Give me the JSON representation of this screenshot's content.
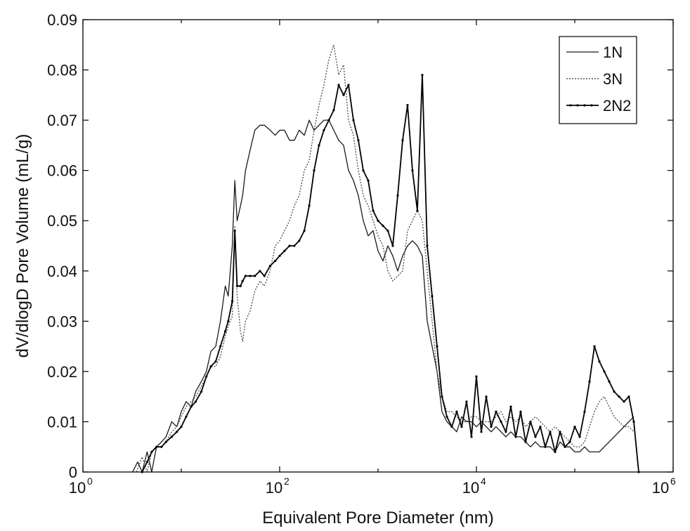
{
  "chart_data": {
    "type": "line",
    "title": "",
    "xlabel": "Equivalent Pore Diameter (nm)",
    "ylabel": "dV/dlogD Pore Volume (mL/g)",
    "xscale": "log",
    "xlim": [
      1,
      1000000
    ],
    "ylim": [
      0,
      0.09
    ],
    "xticks": [
      {
        "base": "10",
        "exp": "0"
      },
      {
        "base": "10",
        "exp": "2"
      },
      {
        "base": "10",
        "exp": "4"
      },
      {
        "base": "10",
        "exp": "6"
      }
    ],
    "yticks": [
      "0",
      "0.01",
      "0.02",
      "0.03",
      "0.04",
      "0.05",
      "0.06",
      "0.07",
      "0.08",
      "0.09"
    ],
    "grid": false,
    "legend_position": "top-right",
    "series": [
      {
        "name": "1N",
        "style": "solid",
        "color": "#1a1a1a",
        "x": [
          3.2,
          3.6,
          4,
          4.5,
          5,
          5.6,
          6.3,
          7,
          8,
          9,
          10,
          11.2,
          12.6,
          14,
          16,
          18,
          20,
          22.4,
          25,
          28,
          30,
          33,
          35,
          37,
          40,
          42,
          45,
          50,
          56,
          63,
          70,
          80,
          90,
          100,
          112,
          126,
          141,
          158,
          178,
          200,
          224,
          251,
          282,
          316,
          355,
          398,
          447,
          501,
          562,
          631,
          708,
          794,
          891,
          1000,
          1122,
          1259,
          1413,
          1585,
          1778,
          1995,
          2239,
          2512,
          2818,
          3162,
          3548,
          3981,
          4467,
          5012,
          5623,
          6310,
          7079,
          7943,
          8913,
          10000,
          11220,
          12589,
          14125,
          15849,
          17783,
          19953,
          22387,
          25119,
          28184,
          31623,
          35481,
          39811,
          44668,
          50119,
          56234,
          63096,
          70795,
          79433,
          89125,
          100000,
          112202,
          125893,
          141254,
          158489,
          177828,
          199526,
          223872,
          251189,
          281838,
          316228,
          354813,
          398107
        ],
        "y": [
          0,
          0.002,
          0,
          0.004,
          0,
          0.005,
          0.006,
          0.007,
          0.01,
          0.009,
          0.012,
          0.014,
          0.013,
          0.016,
          0.018,
          0.02,
          0.024,
          0.025,
          0.03,
          0.037,
          0.035,
          0.045,
          0.058,
          0.05,
          0.053,
          0.055,
          0.06,
          0.064,
          0.068,
          0.069,
          0.069,
          0.068,
          0.067,
          0.068,
          0.068,
          0.066,
          0.066,
          0.068,
          0.067,
          0.07,
          0.068,
          0.069,
          0.07,
          0.07,
          0.068,
          0.066,
          0.065,
          0.06,
          0.058,
          0.055,
          0.05,
          0.047,
          0.048,
          0.044,
          0.042,
          0.045,
          0.043,
          0.04,
          0.043,
          0.045,
          0.046,
          0.045,
          0.043,
          0.03,
          0.025,
          0.02,
          0.012,
          0.01,
          0.009,
          0.008,
          0.011,
          0.01,
          0.01,
          0.009,
          0.01,
          0.009,
          0.008,
          0.009,
          0.008,
          0.007,
          0.008,
          0.007,
          0.007,
          0.006,
          0.005,
          0.006,
          0.005,
          0.005,
          0.005,
          0.004,
          0.006,
          0.005,
          0.005,
          0.004,
          0.004,
          0.005,
          0.004,
          0.004,
          0.004,
          0.005,
          0.006,
          0.007,
          0.008,
          0.009,
          0.01,
          0.011
        ]
      },
      {
        "name": "3N",
        "style": "dotted",
        "color": "#555555",
        "x": [
          3.5,
          4,
          4.5,
          5,
          5.6,
          6.3,
          7,
          8,
          9,
          10,
          11.2,
          12.6,
          14,
          16,
          18,
          20,
          22.4,
          25,
          28,
          30,
          33,
          35,
          37,
          40,
          42,
          45,
          50,
          56,
          63,
          70,
          80,
          90,
          100,
          112,
          126,
          141,
          158,
          178,
          200,
          224,
          251,
          282,
          316,
          355,
          398,
          447,
          501,
          562,
          631,
          708,
          794,
          891,
          1000,
          1122,
          1259,
          1413,
          1585,
          1778,
          1995,
          2239,
          2512,
          2818,
          3162,
          3548,
          3981,
          4467,
          5012,
          5623,
          6310,
          7079,
          7943,
          8913,
          10000,
          11220,
          12589,
          14125,
          15849,
          17783,
          19953,
          22387,
          25119,
          28184,
          31623,
          35481,
          39811,
          44668,
          50119,
          56234,
          63096,
          70795,
          79433,
          89125,
          100000,
          112202,
          125893,
          141254,
          158489,
          177828,
          199526,
          223872,
          251189,
          281838,
          316228,
          354813,
          398107
        ],
        "y": [
          0,
          0.003,
          0,
          0.004,
          0.005,
          0.005,
          0.006,
          0.008,
          0.009,
          0.011,
          0.013,
          0.014,
          0.015,
          0.017,
          0.019,
          0.021,
          0.021,
          0.023,
          0.027,
          0.029,
          0.031,
          0.049,
          0.035,
          0.028,
          0.026,
          0.03,
          0.032,
          0.036,
          0.038,
          0.037,
          0.04,
          0.045,
          0.046,
          0.048,
          0.05,
          0.053,
          0.055,
          0.06,
          0.062,
          0.068,
          0.073,
          0.077,
          0.082,
          0.085,
          0.079,
          0.081,
          0.07,
          0.067,
          0.06,
          0.055,
          0.053,
          0.05,
          0.047,
          0.045,
          0.04,
          0.038,
          0.039,
          0.04,
          0.048,
          0.05,
          0.052,
          0.05,
          0.04,
          0.03,
          0.02,
          0.015,
          0.012,
          0.012,
          0.011,
          0.01,
          0.01,
          0.011,
          0.011,
          0.01,
          0.01,
          0.01,
          0.011,
          0.012,
          0.01,
          0.011,
          0.01,
          0.011,
          0.009,
          0.01,
          0.011,
          0.01,
          0.009,
          0.008,
          0.009,
          0.008,
          0.007,
          0.006,
          0.005,
          0.005,
          0.006,
          0.009,
          0.012,
          0.014,
          0.015,
          0.013,
          0.011,
          0.01,
          0.009,
          0.009,
          0.008
        ]
      },
      {
        "name": "2N2",
        "style": "solid-dot",
        "color": "#000000",
        "x": [
          4,
          4.5,
          5,
          5.6,
          6.3,
          7,
          8,
          9,
          10,
          11.2,
          12.6,
          14,
          16,
          18,
          20,
          22.4,
          25,
          28,
          30,
          33,
          35,
          37,
          40,
          42,
          45,
          50,
          56,
          63,
          70,
          80,
          90,
          100,
          112,
          126,
          141,
          158,
          178,
          200,
          224,
          251,
          282,
          316,
          355,
          398,
          447,
          501,
          562,
          631,
          708,
          794,
          891,
          1000,
          1122,
          1259,
          1413,
          1585,
          1778,
          1995,
          2239,
          2512,
          2818,
          3162,
          3548,
          3981,
          4467,
          5012,
          5623,
          6310,
          7079,
          7943,
          8913,
          10000,
          11220,
          12589,
          14125,
          15849,
          17783,
          19953,
          22387,
          25119,
          28184,
          31623,
          35481,
          39811,
          44668,
          50119,
          56234,
          63096,
          70795,
          79433,
          89125,
          100000,
          112202,
          125893,
          141254,
          158489,
          177828,
          199526,
          223872,
          251189,
          281838,
          316228,
          354813,
          398107,
          446684
        ],
        "y": [
          0,
          0.002,
          0.004,
          0.005,
          0.005,
          0.006,
          0.007,
          0.008,
          0.009,
          0.011,
          0.013,
          0.014,
          0.016,
          0.019,
          0.021,
          0.022,
          0.025,
          0.028,
          0.03,
          0.034,
          0.048,
          0.037,
          0.037,
          0.038,
          0.039,
          0.039,
          0.039,
          0.04,
          0.039,
          0.041,
          0.042,
          0.043,
          0.044,
          0.045,
          0.045,
          0.046,
          0.048,
          0.053,
          0.06,
          0.065,
          0.068,
          0.07,
          0.072,
          0.077,
          0.075,
          0.077,
          0.07,
          0.066,
          0.06,
          0.058,
          0.052,
          0.05,
          0.049,
          0.048,
          0.045,
          0.055,
          0.066,
          0.073,
          0.06,
          0.052,
          0.079,
          0.045,
          0.035,
          0.025,
          0.015,
          0.011,
          0.009,
          0.012,
          0.009,
          0.014,
          0.007,
          0.019,
          0.008,
          0.015,
          0.009,
          0.012,
          0.01,
          0.008,
          0.013,
          0.007,
          0.012,
          0.006,
          0.01,
          0.007,
          0.009,
          0.005,
          0.008,
          0.004,
          0.008,
          0.005,
          0.006,
          0.009,
          0.007,
          0.012,
          0.018,
          0.025,
          0.022,
          0.02,
          0.018,
          0.016,
          0.015,
          0.014,
          0.015,
          0.01,
          0
        ]
      }
    ]
  }
}
